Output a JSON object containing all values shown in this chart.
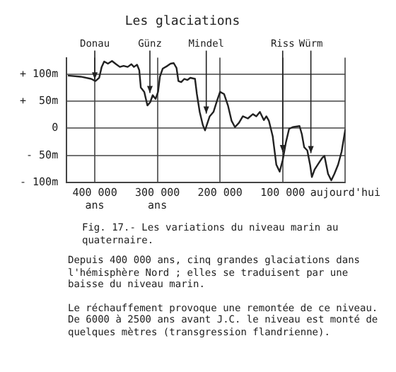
{
  "chart_data": {
    "type": "line",
    "title": "Les glaciations",
    "x": [
      443000,
      422500,
      405800,
      399000,
      393000,
      389000,
      385000,
      379000,
      372500,
      366000,
      360000,
      354000,
      347500,
      341500,
      337500,
      332500,
      329000,
      326500,
      321000,
      316000,
      311500,
      307500,
      303000,
      299000,
      296000,
      291500,
      284000,
      279000,
      274000,
      269500,
      266500,
      262000,
      257000,
      252000,
      247500,
      240000,
      237000,
      232500,
      227500,
      224000,
      220000,
      216500,
      210500,
      205000,
      200000,
      193600,
      187400,
      181700,
      176200,
      169800,
      163600,
      155600,
      147600,
      142100,
      136400,
      130100,
      126100,
      122100,
      115900,
      110200,
      104800,
      100000,
      95000,
      89700,
      84000,
      73100,
      69400,
      65700,
      60700,
      56300,
      53400,
      49000,
      41700,
      37000,
      33300,
      27600,
      22400,
      17400,
      11500,
      5900,
      0
    ],
    "series": [
      {
        "color": "#222222",
        "values": [
          97,
          95,
          91,
          87,
          93,
          113,
          123,
          119,
          124,
          118,
          113,
          115,
          113,
          118,
          113,
          117,
          107,
          75,
          67,
          42,
          48,
          61,
          54,
          67,
          95,
          110,
          115,
          119,
          120,
          111,
          87,
          85,
          91,
          89,
          93,
          91,
          63,
          30,
          6,
          -4,
          10,
          22,
          30,
          50,
          67,
          63,
          42,
          14,
          2,
          10,
          22,
          18,
          26,
          22,
          30,
          15,
          22,
          14,
          -15,
          -67,
          -80,
          -59,
          -27,
          -1,
          2,
          4,
          -11,
          -35,
          -41,
          -67,
          -90,
          -76,
          -63,
          -55,
          -51,
          -84,
          -96,
          -84,
          -67,
          -43,
          -2
        ]
      }
    ],
    "xlim": [
      445000,
      0
    ],
    "xticks": [
      {
        "value": 400000,
        "label": "400 000\nans"
      },
      {
        "value": 300000,
        "label": "300 000\nans"
      },
      {
        "value": 200000,
        "label": "200 000"
      },
      {
        "value": 100000,
        "label": "100 000"
      },
      {
        "value": 0,
        "label": "aujourd'hui"
      }
    ],
    "ylim": [
      -100,
      130
    ],
    "yticks": [
      {
        "value": -100,
        "label": "- 100m"
      },
      {
        "value": -50,
        "label": "- 50m"
      },
      0,
      {
        "value": 50,
        "label": "+  50m"
      },
      {
        "value": 100,
        "label": "+ 100m"
      }
    ],
    "grid": true,
    "legend": false,
    "marker": "none",
    "line_style": "solid",
    "annotations": [
      {
        "text": "Donau",
        "x": 400000,
        "y": 90
      },
      {
        "text": "Günz",
        "x": 312000,
        "y": 65
      },
      {
        "text": "Mindel",
        "x": 222000,
        "y": 27
      },
      {
        "text": "Riss",
        "x": 100000,
        "y": -44
      },
      {
        "text": "Würm",
        "x": 55000,
        "y": -46
      },
      "Fig. 17.- Les variations du niveau marin au quaternaire.",
      "Depuis 400 000 ans, cinq grandes glaciations dans l'hémisphère Nord ; elles se traduisent par une baisse du niveau marin.",
      "Le réchauffement provoque une remontée de ce niveau. De 6000 à 2500 ans avant J.C. le niveau est monté de quelques mètres (transgression flandrienne)."
    ]
  }
}
